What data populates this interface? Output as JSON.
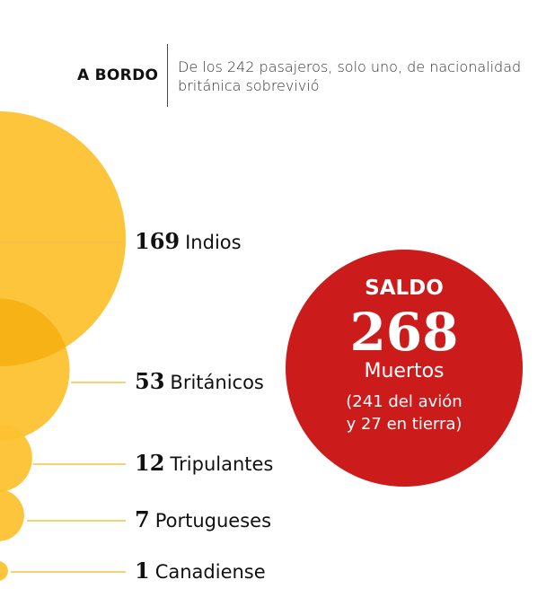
{
  "header": {
    "title": "A BORDO",
    "description": "De los 242 pasajeros, solo uno, de nacionalidad británica sobrevivió"
  },
  "summary": {
    "label": "SALDO",
    "value": "268",
    "unit": "Muertos",
    "note_line1": "(241 del avión",
    "note_line2": "y 27 en tierra)"
  },
  "colors": {
    "bubble": "#FCC230",
    "bubble_overlap": "#F7B316",
    "summary_circle": "#CC1B1B",
    "leader_line": "#F6C24A",
    "text": "#111111"
  },
  "chart_data": {
    "type": "bubble",
    "title": "A BORDO",
    "subtitle": "De los 242 pasajeros, solo uno, de nacionalidad británica sobrevivió",
    "unit": "pasajeros",
    "series": [
      {
        "values": [
          169,
          53,
          12,
          7,
          1
        ],
        "labels": [
          "Indios",
          "Británicos",
          "Tripulantes",
          "Portugueses",
          "Canadiense"
        ]
      }
    ],
    "categories": [
      "Indios",
      "Británicos",
      "Tripulantes",
      "Portugueses",
      "Canadiense"
    ],
    "values": [
      169,
      53,
      12,
      7,
      1
    ],
    "total": 268
  }
}
